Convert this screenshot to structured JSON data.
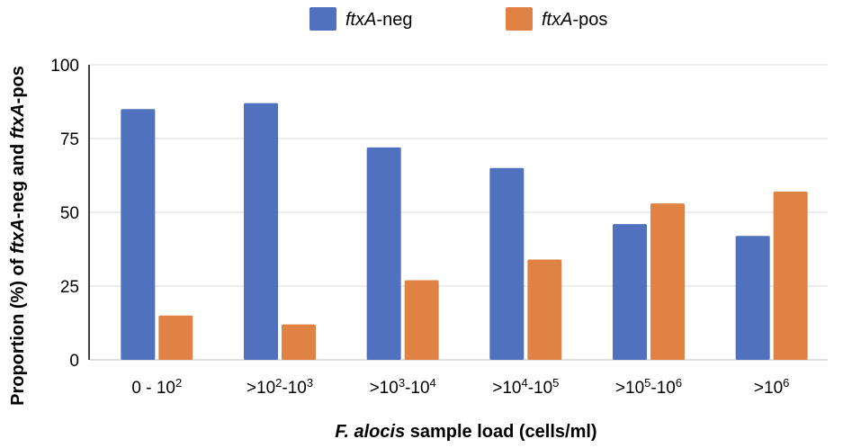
{
  "chart_data": {
    "type": "bar",
    "categories": [
      {
        "base": "0 - 10",
        "sup": "2",
        "parts": [
          [
            "0 - 10",
            ""
          ],
          [
            "2",
            "sup"
          ]
        ]
      },
      {
        "parts": [
          [
            ">10",
            ""
          ],
          [
            "2",
            "sup"
          ],
          [
            "-10",
            ""
          ],
          [
            "3",
            "sup"
          ]
        ]
      },
      {
        "parts": [
          [
            ">10",
            ""
          ],
          [
            "3",
            "sup"
          ],
          [
            "-10",
            ""
          ],
          [
            "4",
            "sup"
          ]
        ]
      },
      {
        "parts": [
          [
            ">10",
            ""
          ],
          [
            "4",
            "sup"
          ],
          [
            "-10",
            ""
          ],
          [
            "5",
            "sup"
          ]
        ]
      },
      {
        "parts": [
          [
            ">10",
            ""
          ],
          [
            "5",
            "sup"
          ],
          [
            "-10",
            ""
          ],
          [
            "6",
            "sup"
          ]
        ]
      },
      {
        "parts": [
          [
            ">10",
            ""
          ],
          [
            "6",
            "sup"
          ]
        ]
      }
    ],
    "series": [
      {
        "name_italic": "ftxA",
        "name_rest": "-neg",
        "color": "#4f71be",
        "values": [
          85,
          87,
          72,
          65,
          46,
          42
        ]
      },
      {
        "name_italic": "ftxA",
        "name_rest": "-pos",
        "color": "#df8244",
        "values": [
          15,
          12,
          27,
          34,
          53,
          57
        ]
      }
    ],
    "yticks": [
      "0",
      "25",
      "50",
      "75",
      "100"
    ],
    "ylim": [
      0,
      100
    ],
    "xlabel": {
      "italic": "F. alocis",
      "rest": " sample load (cells/ml)"
    },
    "ylabel": {
      "parts": [
        [
          "Proportion (%) of ",
          ""
        ],
        [
          "ftxA",
          "i"
        ],
        [
          "-neg and ",
          ""
        ],
        [
          "ftxA",
          "i"
        ],
        [
          "-pos",
          ""
        ]
      ]
    },
    "grid": true,
    "legend": "top"
  }
}
